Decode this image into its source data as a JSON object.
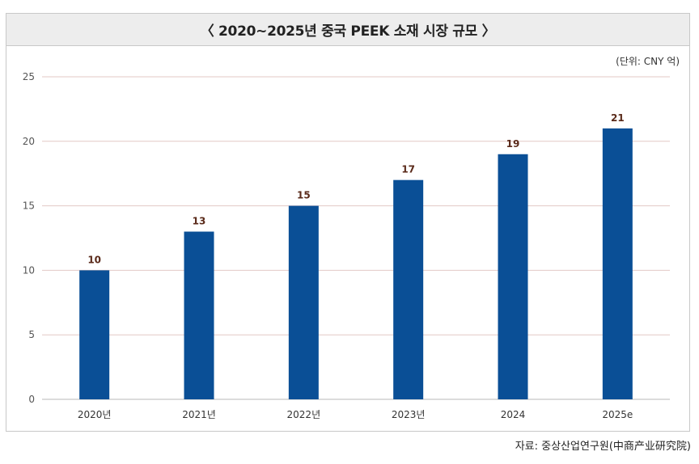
{
  "chart_data": {
    "type": "bar",
    "title": "〈 2020~2025년 중국 PEEK 소재 시장 규모 〉",
    "unit": "(단위: CNY 억)",
    "categories": [
      "2020년",
      "2021년",
      "2022년",
      "2023년",
      "2024",
      "2025e"
    ],
    "values": [
      10,
      13,
      15,
      17,
      19,
      21
    ],
    "ylim": [
      0,
      25
    ],
    "yticks": [
      0,
      5,
      10,
      15,
      20,
      25
    ],
    "grid": true,
    "bar_color": "#0a4f96",
    "grid_color": "#e3c9c6",
    "label_color": "#5a2a1a"
  },
  "source": "자료: 중상산업연구원(中商产业研究院)"
}
